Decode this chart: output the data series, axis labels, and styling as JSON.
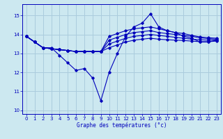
{
  "title": "Graphe des températures (°c)",
  "background_color": "#cce8f0",
  "line_color": "#0000bb",
  "grid_color": "#aaccdd",
  "xlim": [
    -0.5,
    23.5
  ],
  "ylim": [
    9.8,
    15.6
  ],
  "yticks": [
    10,
    11,
    12,
    13,
    14,
    15
  ],
  "xticks": [
    0,
    1,
    2,
    3,
    4,
    5,
    6,
    7,
    8,
    9,
    10,
    11,
    12,
    13,
    14,
    15,
    16,
    17,
    18,
    19,
    20,
    21,
    22,
    23
  ],
  "series": [
    {
      "x": [
        0,
        1,
        2,
        3,
        4,
        5,
        6,
        7,
        8,
        9,
        10,
        11,
        12,
        13,
        14,
        15,
        16,
        17,
        18,
        19,
        20,
        21,
        22,
        23
      ],
      "y": [
        13.9,
        13.6,
        13.3,
        13.3,
        12.9,
        12.5,
        12.1,
        12.2,
        11.7,
        10.5,
        12.0,
        13.0,
        13.9,
        14.4,
        14.6,
        15.1,
        14.4,
        14.2,
        14.1,
        13.9,
        13.8,
        13.6,
        13.6,
        13.7
      ]
    },
    {
      "x": [
        0,
        1,
        2,
        3,
        4,
        5,
        6,
        7,
        8,
        9,
        10,
        11,
        12,
        13,
        14,
        15,
        16,
        17,
        18,
        19,
        20,
        21,
        22,
        23
      ],
      "y": [
        13.9,
        13.6,
        13.3,
        13.25,
        13.2,
        13.15,
        13.1,
        13.1,
        13.1,
        13.1,
        13.3,
        13.45,
        13.6,
        13.7,
        13.75,
        13.8,
        13.75,
        13.72,
        13.7,
        13.68,
        13.65,
        13.62,
        13.62,
        13.65
      ]
    },
    {
      "x": [
        0,
        1,
        2,
        3,
        4,
        5,
        6,
        7,
        8,
        9,
        10,
        11,
        12,
        13,
        14,
        15,
        16,
        17,
        18,
        19,
        20,
        21,
        22,
        23
      ],
      "y": [
        13.9,
        13.6,
        13.3,
        13.25,
        13.2,
        13.15,
        13.1,
        13.1,
        13.1,
        13.1,
        13.5,
        13.65,
        13.8,
        13.9,
        13.95,
        14.0,
        13.95,
        13.9,
        13.85,
        13.8,
        13.75,
        13.72,
        13.7,
        13.7
      ]
    },
    {
      "x": [
        0,
        1,
        2,
        3,
        4,
        5,
        6,
        7,
        8,
        9,
        10,
        11,
        12,
        13,
        14,
        15,
        16,
        17,
        18,
        19,
        20,
        21,
        22,
        23
      ],
      "y": [
        13.9,
        13.6,
        13.3,
        13.25,
        13.2,
        13.15,
        13.1,
        13.1,
        13.1,
        13.1,
        13.7,
        13.85,
        14.0,
        14.1,
        14.15,
        14.2,
        14.1,
        14.05,
        14.0,
        13.95,
        13.9,
        13.82,
        13.78,
        13.75
      ]
    },
    {
      "x": [
        0,
        1,
        2,
        3,
        4,
        5,
        6,
        7,
        8,
        9,
        10,
        11,
        12,
        13,
        14,
        15,
        16,
        17,
        18,
        19,
        20,
        21,
        22,
        23
      ],
      "y": [
        13.9,
        13.6,
        13.3,
        13.25,
        13.2,
        13.15,
        13.1,
        13.1,
        13.1,
        13.1,
        13.9,
        14.05,
        14.2,
        14.3,
        14.35,
        14.4,
        14.3,
        14.2,
        14.1,
        14.05,
        13.95,
        13.87,
        13.83,
        13.8
      ]
    }
  ]
}
